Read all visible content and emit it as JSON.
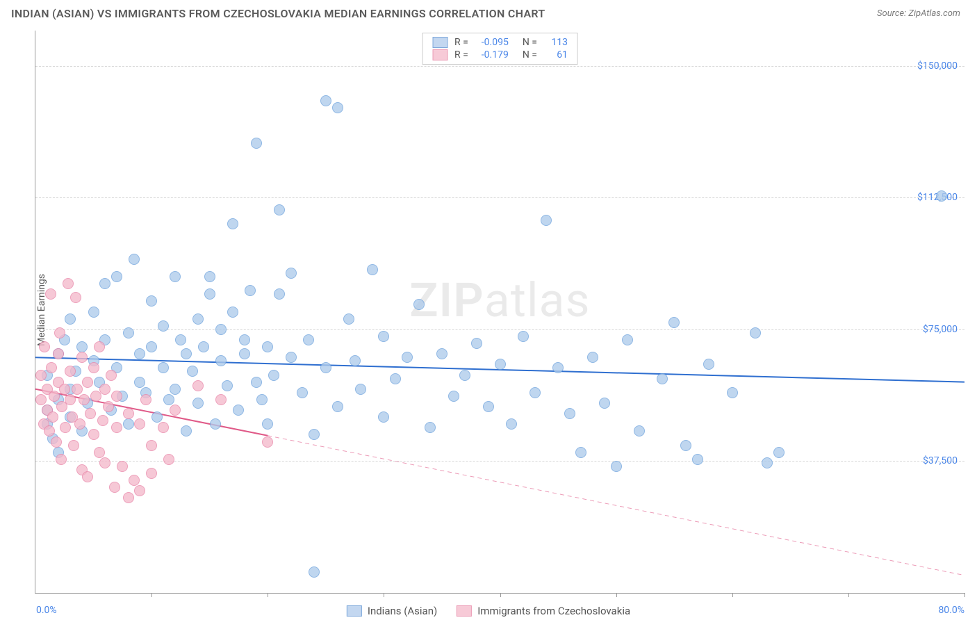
{
  "title": "INDIAN (ASIAN) VS IMMIGRANTS FROM CZECHOSLOVAKIA MEDIAN EARNINGS CORRELATION CHART",
  "source": "Source: ZipAtlas.com",
  "ylabel": "Median Earnings",
  "watermark_zip": "ZIP",
  "watermark_atlas": "atlas",
  "chart": {
    "type": "scatter",
    "xlim": [
      0,
      80
    ],
    "ylim": [
      0,
      160000
    ],
    "x_axis_min_label": "0.0%",
    "x_axis_max_label": "80.0%",
    "xtick_positions": [
      10,
      20,
      30,
      40,
      50,
      60,
      70,
      80
    ],
    "y_gridlines": [
      {
        "value": 37500,
        "label": "$37,500"
      },
      {
        "value": 75000,
        "label": "$75,000"
      },
      {
        "value": 112500,
        "label": "$112,500"
      },
      {
        "value": 150000,
        "label": "$150,000"
      }
    ],
    "grid_color": "#d8d8d8",
    "axis_color": "#999",
    "background_color": "#ffffff",
    "series": [
      {
        "key": "indians",
        "label": "Indians (Asian)",
        "color_fill": "#aecbeb",
        "color_stroke": "#6fa3dd",
        "swatch_fill": "#c3d7f0",
        "swatch_border": "#7fa9db",
        "marker_radius": 8,
        "marker_opacity": 0.78,
        "R": "-0.095",
        "N": "113",
        "trend": {
          "x1": 0,
          "y1": 67000,
          "x2": 80,
          "y2": 60000,
          "stroke": "#2f6fd0",
          "width": 2,
          "dash": "none",
          "solid_until_x": 80
        },
        "points": [
          [
            1,
            48000
          ],
          [
            1,
            52000
          ],
          [
            1,
            62000
          ],
          [
            1.5,
            44000
          ],
          [
            2,
            55000
          ],
          [
            2,
            68000
          ],
          [
            2,
            40000
          ],
          [
            2.5,
            72000
          ],
          [
            3,
            58000
          ],
          [
            3,
            50000
          ],
          [
            3,
            78000
          ],
          [
            3.5,
            63000
          ],
          [
            4,
            46000
          ],
          [
            4,
            70000
          ],
          [
            4.5,
            54000
          ],
          [
            5,
            66000
          ],
          [
            5,
            80000
          ],
          [
            5.5,
            60000
          ],
          [
            6,
            72000
          ],
          [
            6,
            88000
          ],
          [
            6.5,
            52000
          ],
          [
            7,
            64000
          ],
          [
            7,
            90000
          ],
          [
            7.5,
            56000
          ],
          [
            8,
            74000
          ],
          [
            8,
            48000
          ],
          [
            8.5,
            95000
          ],
          [
            9,
            68000
          ],
          [
            9,
            60000
          ],
          [
            9.5,
            57000
          ],
          [
            10,
            70000
          ],
          [
            10,
            83000
          ],
          [
            10.5,
            50000
          ],
          [
            11,
            64000
          ],
          [
            11,
            76000
          ],
          [
            11.5,
            55000
          ],
          [
            12,
            90000
          ],
          [
            12,
            58000
          ],
          [
            12.5,
            72000
          ],
          [
            13,
            68000
          ],
          [
            13,
            46000
          ],
          [
            13.5,
            63000
          ],
          [
            14,
            78000
          ],
          [
            14,
            54000
          ],
          [
            14.5,
            70000
          ],
          [
            15,
            85000
          ],
          [
            15,
            90000
          ],
          [
            15.5,
            48000
          ],
          [
            16,
            66000
          ],
          [
            16,
            75000
          ],
          [
            16.5,
            59000
          ],
          [
            17,
            80000
          ],
          [
            17,
            105000
          ],
          [
            17.5,
            52000
          ],
          [
            18,
            68000
          ],
          [
            18,
            72000
          ],
          [
            18.5,
            86000
          ],
          [
            19,
            60000
          ],
          [
            19,
            128000
          ],
          [
            19.5,
            55000
          ],
          [
            20,
            70000
          ],
          [
            20,
            48000
          ],
          [
            20.5,
            62000
          ],
          [
            21,
            109000
          ],
          [
            21,
            85000
          ],
          [
            22,
            67000
          ],
          [
            22,
            91000
          ],
          [
            23,
            57000
          ],
          [
            23.5,
            72000
          ],
          [
            24,
            45000
          ],
          [
            25,
            64000
          ],
          [
            25,
            140000
          ],
          [
            26,
            53000
          ],
          [
            26,
            138000
          ],
          [
            27,
            78000
          ],
          [
            27.5,
            66000
          ],
          [
            28,
            58000
          ],
          [
            29,
            92000
          ],
          [
            30,
            50000
          ],
          [
            30,
            73000
          ],
          [
            31,
            61000
          ],
          [
            32,
            67000
          ],
          [
            33,
            82000
          ],
          [
            34,
            47000
          ],
          [
            35,
            68000
          ],
          [
            36,
            56000
          ],
          [
            37,
            62000
          ],
          [
            38,
            71000
          ],
          [
            39,
            53000
          ],
          [
            40,
            65000
          ],
          [
            41,
            48000
          ],
          [
            42,
            73000
          ],
          [
            43,
            57000
          ],
          [
            44,
            106000
          ],
          [
            45,
            64000
          ],
          [
            46,
            51000
          ],
          [
            47,
            40000
          ],
          [
            48,
            67000
          ],
          [
            49,
            54000
          ],
          [
            50,
            36000
          ],
          [
            51,
            72000
          ],
          [
            52,
            46000
          ],
          [
            54,
            61000
          ],
          [
            55,
            77000
          ],
          [
            56,
            42000
          ],
          [
            57,
            38000
          ],
          [
            58,
            65000
          ],
          [
            60,
            57000
          ],
          [
            62,
            74000
          ],
          [
            63,
            37000
          ],
          [
            64,
            40000
          ],
          [
            78,
            113000
          ],
          [
            24,
            6000
          ]
        ]
      },
      {
        "key": "czech",
        "label": "Immigrants from Czechoslovakia",
        "color_fill": "#f4b9cb",
        "color_stroke": "#e986a9",
        "swatch_fill": "#f7cad7",
        "swatch_border": "#eb9bb5",
        "marker_radius": 8,
        "marker_opacity": 0.78,
        "R": "-0.179",
        "N": "61",
        "trend": {
          "x1": 0,
          "y1": 58000,
          "x2": 80,
          "y2": 5000,
          "stroke": "#e05a88",
          "width": 2,
          "dash": "6,5",
          "solid_until_x": 20
        },
        "points": [
          [
            0.5,
            62000
          ],
          [
            0.5,
            55000
          ],
          [
            0.7,
            48000
          ],
          [
            0.8,
            70000
          ],
          [
            1,
            52000
          ],
          [
            1,
            58000
          ],
          [
            1.2,
            46000
          ],
          [
            1.3,
            85000
          ],
          [
            1.4,
            64000
          ],
          [
            1.5,
            50000
          ],
          [
            1.6,
            56000
          ],
          [
            1.8,
            43000
          ],
          [
            2,
            60000
          ],
          [
            2,
            68000
          ],
          [
            2.1,
            74000
          ],
          [
            2.2,
            38000
          ],
          [
            2.3,
            53000
          ],
          [
            2.5,
            58000
          ],
          [
            2.6,
            47000
          ],
          [
            2.8,
            88000
          ],
          [
            3,
            55000
          ],
          [
            3,
            63000
          ],
          [
            3.2,
            50000
          ],
          [
            3.3,
            42000
          ],
          [
            3.5,
            84000
          ],
          [
            3.6,
            58000
          ],
          [
            3.8,
            48000
          ],
          [
            4,
            67000
          ],
          [
            4,
            35000
          ],
          [
            4.2,
            55000
          ],
          [
            4.5,
            60000
          ],
          [
            4.5,
            33000
          ],
          [
            4.7,
            51000
          ],
          [
            5,
            45000
          ],
          [
            5,
            64000
          ],
          [
            5.2,
            56000
          ],
          [
            5.5,
            40000
          ],
          [
            5.5,
            70000
          ],
          [
            5.8,
            49000
          ],
          [
            6,
            58000
          ],
          [
            6,
            37000
          ],
          [
            6.3,
            53000
          ],
          [
            6.5,
            62000
          ],
          [
            6.8,
            30000
          ],
          [
            7,
            56000
          ],
          [
            7,
            47000
          ],
          [
            7.5,
            36000
          ],
          [
            8,
            51000
          ],
          [
            8,
            27000
          ],
          [
            8.5,
            32000
          ],
          [
            9,
            48000
          ],
          [
            9,
            29000
          ],
          [
            9.5,
            55000
          ],
          [
            10,
            42000
          ],
          [
            10,
            34000
          ],
          [
            11,
            47000
          ],
          [
            11.5,
            38000
          ],
          [
            12,
            52000
          ],
          [
            14,
            59000
          ],
          [
            16,
            55000
          ],
          [
            20,
            43000
          ]
        ]
      }
    ]
  }
}
